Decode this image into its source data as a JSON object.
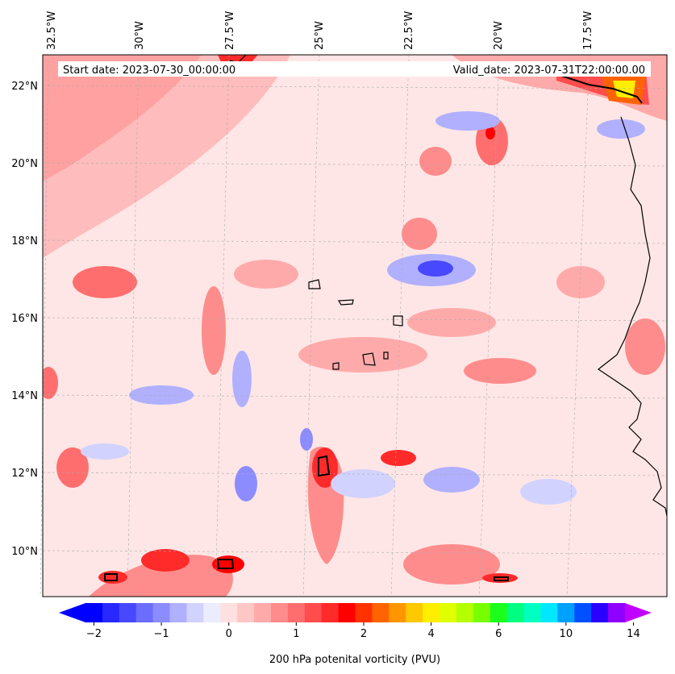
{
  "header": {
    "start_label": "Start date: 2023-07-30_00:00:00",
    "valid_label": "Valid_date: 2023-07-31T22:00:00.00"
  },
  "axes": {
    "lon_labels": [
      "32.5°W",
      "30°W",
      "27.5°W",
      "25°W",
      "22.5°W",
      "20°W",
      "17.5°W"
    ],
    "lat_labels": [
      "22°N",
      "20°N",
      "18°N",
      "16°N",
      "14°N",
      "12°N",
      "10°N"
    ]
  },
  "colorbar": {
    "label": "200 hPa potenital vorticity (PVU)",
    "tick_labels": [
      "−2",
      "−1",
      "0",
      "1",
      "2",
      "4",
      "6",
      "10",
      "14"
    ],
    "colors": [
      "#0000ff",
      "#2828ff",
      "#4848ff",
      "#6c6cff",
      "#8c8cff",
      "#b0b0ff",
      "#d2d2ff",
      "#ececff",
      "#ffe0e0",
      "#ffc6c6",
      "#ffaaaa",
      "#ff8c8c",
      "#ff6e6e",
      "#ff4c4c",
      "#ff2a2a",
      "#ff0000",
      "#ff3200",
      "#ff6400",
      "#ff9600",
      "#ffc800",
      "#ffee00",
      "#e0ff00",
      "#b4ff00",
      "#78ff00",
      "#1cff1c",
      "#00ff80",
      "#00ffc0",
      "#00e8ff",
      "#00a0ff",
      "#0050ff",
      "#2a00ff",
      "#9000ff"
    ],
    "extend_low_color": "#0000ff",
    "extend_high_color": "#c000ff"
  },
  "field": {
    "name": "200 hPa potential vorticity",
    "units": "PVU",
    "background_color": "#ffe6e6",
    "dominant_level": "0 to 0.5 PVU (light pink)",
    "highs": [
      "north-west band along top",
      "near 22°N 17°W (>4 PVU)",
      "near 12°N 25°W",
      "near 9.5°N 29°W"
    ],
    "lows": [
      "near 17°N 22°W",
      "near 21°N 20°W",
      "near 12°N 26°W"
    ]
  },
  "map": {
    "coastline_color": "#000000",
    "gridline_color": "#aaaaaa"
  }
}
